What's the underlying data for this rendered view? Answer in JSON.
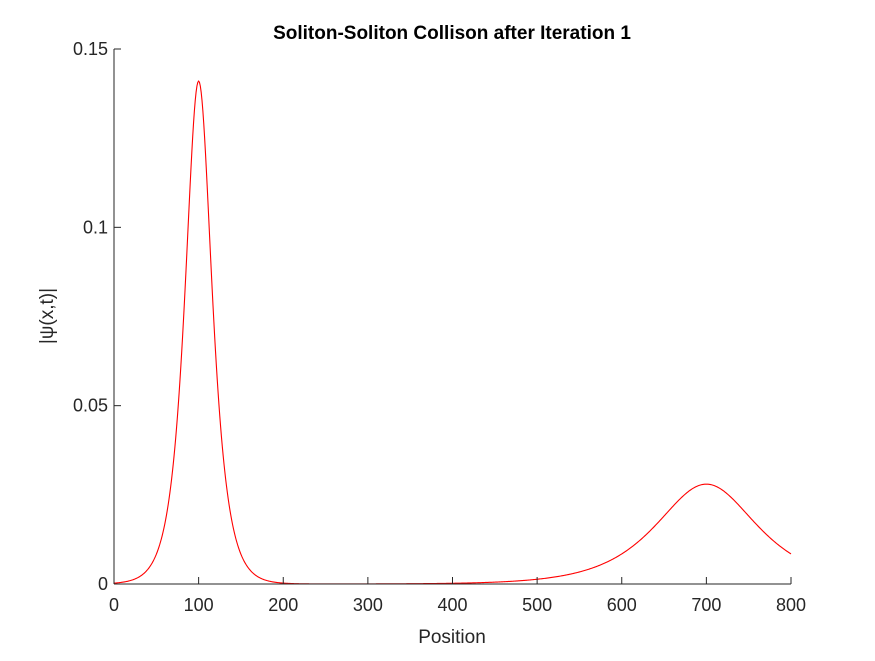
{
  "chart_data": {
    "type": "line",
    "title": "Soliton-Soliton Collison after Iteration 1",
    "xlabel": "Position",
    "ylabel": "|ψ(x,t)|",
    "xlim": [
      0,
      800
    ],
    "ylim": [
      0,
      0.15
    ],
    "xticks": [
      0,
      100,
      200,
      300,
      400,
      500,
      600,
      700,
      800
    ],
    "yticks": [
      0,
      0.05,
      0.1,
      0.15
    ],
    "xtick_labels": [
      "0",
      "100",
      "200",
      "300",
      "400",
      "500",
      "600",
      "700",
      "800"
    ],
    "ytick_labels": [
      "0",
      "0.05",
      "0.1",
      "0.15"
    ],
    "grid": false,
    "legend": "none",
    "series": [
      {
        "color": "#ff0000",
        "solitons": [
          {
            "center": 100,
            "peak": 0.141,
            "half_width_scale": 14.2
          },
          {
            "center": 700,
            "peak": 0.028,
            "half_width_scale": 53.5
          }
        ],
        "x": [
          0,
          25,
          50,
          75,
          90,
          100,
          110,
          125,
          150,
          175,
          200,
          300,
          400,
          500,
          550,
          600,
          650,
          700,
          750,
          800
        ],
        "y": [
          0.0001,
          0.0012,
          0.0082,
          0.0507,
          0.1158,
          0.141,
          0.1158,
          0.0507,
          0.0082,
          0.0012,
          0.0002,
          0.0,
          0.0001,
          0.0012,
          0.0031,
          0.0072,
          0.0159,
          0.028,
          0.0159,
          0.0072
        ]
      }
    ]
  }
}
